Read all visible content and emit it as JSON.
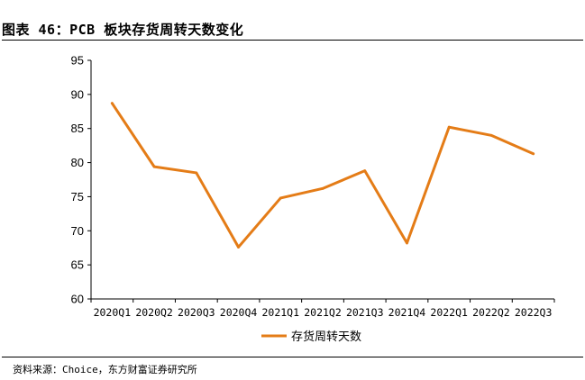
{
  "figure_title": "图表 46：PCB 板块存货周转天数变化",
  "source_note": "资料来源：Choice，东方财富证券研究所",
  "chart_data": {
    "type": "line",
    "categories": [
      "2020Q1",
      "2020Q2",
      "2020Q3",
      "2020Q4",
      "2021Q1",
      "2021Q2",
      "2021Q3",
      "2021Q4",
      "2022Q1",
      "2022Q2",
      "2022Q3"
    ],
    "series": [
      {
        "name": "存货周转天数",
        "color": "#e47c17",
        "values": [
          88.7,
          79.4,
          78.5,
          67.6,
          74.8,
          76.2,
          78.8,
          68.2,
          85.2,
          84.0,
          81.3
        ]
      }
    ],
    "ylim": [
      60,
      95
    ],
    "yticks": [
      60,
      65,
      70,
      75,
      80,
      85,
      90,
      95
    ],
    "grid": false,
    "legend": "bottom"
  }
}
